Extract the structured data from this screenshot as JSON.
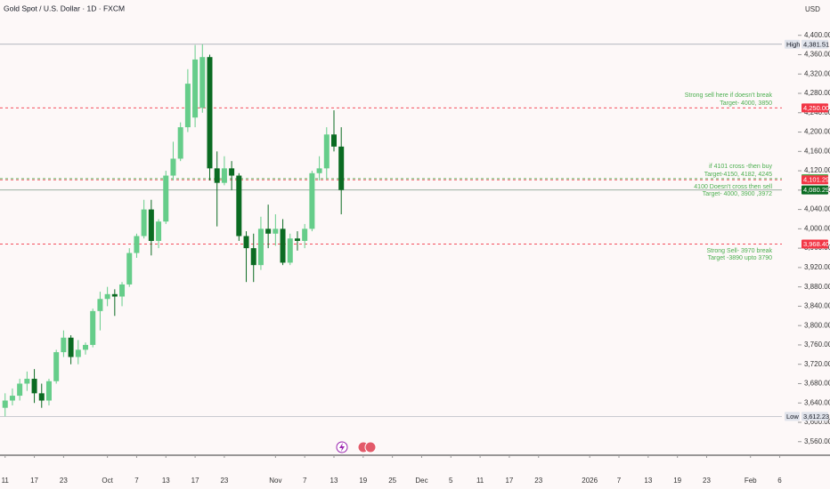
{
  "chart_data": {
    "type": "candlestick",
    "title": "Gold Spot / U.S. Dollar · 1D · FXCM",
    "currency": "USD",
    "ylim": [
      3532,
      4473
    ],
    "xlim": [
      -0.7,
      106.3
    ],
    "yticks": [
      {
        "value": 4400,
        "label": "4,400.00"
      },
      {
        "value": 4360,
        "label": "4,360.00"
      },
      {
        "value": 4320,
        "label": "4,320.00"
      },
      {
        "value": 4280,
        "label": "4,280.00"
      },
      {
        "value": 4240,
        "label": "4,240.00"
      },
      {
        "value": 4200,
        "label": "4,200.00"
      },
      {
        "value": 4160,
        "label": "4,160.00"
      },
      {
        "value": 4120,
        "label": "4,120.00"
      },
      {
        "value": 4080,
        "label": "4,080.00"
      },
      {
        "value": 4040,
        "label": "4,040.00"
      },
      {
        "value": 4000,
        "label": "4,000.00"
      },
      {
        "value": 3960,
        "label": "3,960.00"
      },
      {
        "value": 3920,
        "label": "3,920.00"
      },
      {
        "value": 3880,
        "label": "3,880.00"
      },
      {
        "value": 3840,
        "label": "3,840.00"
      },
      {
        "value": 3800,
        "label": "3,800.00"
      },
      {
        "value": 3760,
        "label": "3,760.00"
      },
      {
        "value": 3720,
        "label": "3,720.00"
      },
      {
        "value": 3680,
        "label": "3,680.00"
      },
      {
        "value": 3640,
        "label": "3,640.00"
      },
      {
        "value": 3600,
        "label": "3,600.00"
      },
      {
        "value": 3560,
        "label": "3,560.00"
      }
    ],
    "xticks": [
      {
        "value": 0,
        "label": "11"
      },
      {
        "value": 4,
        "label": "17"
      },
      {
        "value": 8,
        "label": "23"
      },
      {
        "value": 14,
        "label": "Oct"
      },
      {
        "value": 18,
        "label": "7"
      },
      {
        "value": 22,
        "label": "13"
      },
      {
        "value": 26,
        "label": "17"
      },
      {
        "value": 30,
        "label": "23"
      },
      {
        "value": 37,
        "label": "Nov"
      },
      {
        "value": 41,
        "label": "7"
      },
      {
        "value": 45,
        "label": "13"
      },
      {
        "value": 49,
        "label": "19"
      },
      {
        "value": 53,
        "label": "25"
      },
      {
        "value": 57,
        "label": "Dec"
      },
      {
        "value": 61,
        "label": "5"
      },
      {
        "value": 65,
        "label": "11"
      },
      {
        "value": 69,
        "label": "17"
      },
      {
        "value": 73,
        "label": "23"
      },
      {
        "value": 80,
        "label": "2026"
      },
      {
        "value": 84,
        "label": "7"
      },
      {
        "value": 88,
        "label": "13"
      },
      {
        "value": 92,
        "label": "19"
      },
      {
        "value": 96,
        "label": "23"
      },
      {
        "value": 102,
        "label": "Feb"
      },
      {
        "value": 106,
        "label": "6"
      }
    ],
    "up_color": "#66cd8a",
    "down_color": "#0b6b22",
    "x": [
      0,
      1,
      2,
      3,
      4,
      5,
      6,
      7,
      8,
      9,
      10,
      11,
      12,
      13,
      14,
      15,
      16,
      17,
      18,
      19,
      20,
      21,
      22,
      23,
      24,
      25,
      26,
      27,
      28,
      29,
      30,
      31,
      32,
      33,
      34,
      35,
      36,
      37,
      38,
      39,
      40,
      41,
      42,
      43,
      44,
      45,
      46
    ],
    "open": [
      3630,
      3645,
      3655,
      3680,
      3690,
      3660,
      3645,
      3685,
      3745,
      3775,
      3735,
      3750,
      3760,
      3830,
      3855,
      3865,
      3860,
      3885,
      3950,
      3985,
      4040,
      3975,
      4015,
      4110,
      4145,
      4210,
      4230,
      4250,
      4355,
      4125,
      4095,
      4125,
      4110,
      3985,
      3960,
      3925,
      4000,
      3990,
      4000,
      3930,
      3980,
      3975,
      4000,
      4115,
      4125,
      4195,
      4170
    ],
    "high": [
      3660,
      3670,
      3690,
      3705,
      3710,
      3680,
      3690,
      3750,
      3790,
      3780,
      3770,
      3765,
      3835,
      3870,
      3880,
      3875,
      3890,
      3960,
      3990,
      4060,
      4060,
      4020,
      4120,
      4180,
      4220,
      4330,
      4380,
      4381.51,
      4360,
      4160,
      4150,
      4140,
      4115,
      3995,
      3990,
      4025,
      4050,
      4030,
      4020,
      3990,
      3995,
      4010,
      4120,
      4150,
      4210,
      4245,
      4210
    ],
    "low": [
      3612.23,
      3635,
      3645,
      3665,
      3640,
      3630,
      3635,
      3680,
      3735,
      3720,
      3720,
      3740,
      3755,
      3790,
      3840,
      3820,
      3840,
      3880,
      3940,
      3980,
      3945,
      3960,
      4010,
      4100,
      4140,
      4200,
      4210,
      4240,
      4100,
      4005,
      4090,
      4080,
      3975,
      3890,
      3890,
      3915,
      3960,
      3965,
      3925,
      3925,
      3955,
      3960,
      3995,
      4100,
      4105,
      4160,
      4030
    ],
    "close": [
      3645,
      3655,
      3680,
      3690,
      3660,
      3645,
      3685,
      3745,
      3775,
      3735,
      3750,
      3760,
      3830,
      3855,
      3865,
      3860,
      3885,
      3950,
      3985,
      4040,
      3975,
      4015,
      4110,
      4145,
      4210,
      4300,
      4350,
      4355,
      4125,
      4095,
      4125,
      4110,
      3985,
      3960,
      3925,
      4000,
      3990,
      4000,
      3930,
      3980,
      3975,
      4000,
      4115,
      4125,
      4195,
      4170,
      4080.29
    ],
    "levels": [
      {
        "value": 4381.51,
        "value_label": "4,381.51",
        "tag": "High",
        "color": "#9aa0aa",
        "style": "solid",
        "box": "#e0e3eb",
        "text": "#131722"
      },
      {
        "value": 4250,
        "value_label": "4,250.00",
        "color": "#f23645",
        "style": "dashed",
        "box": "#f23645",
        "text": "#ffffff"
      },
      {
        "value": 4103.66,
        "value_label": "4,103.66",
        "color": "#4caf50",
        "style": "dashed",
        "box": "#4caf50",
        "text": "#ffffff"
      },
      {
        "value": 4101.29,
        "value_label": "4,101.29",
        "color": "#f23645",
        "style": "dashed",
        "box": "#f23645",
        "text": "#ffffff"
      },
      {
        "value": 4080.29,
        "value_label": "4,080.29",
        "color": "#8fa596",
        "style": "solid",
        "box": "#0b6b22",
        "text": "#ffffff"
      },
      {
        "value": 3968.4,
        "value_label": "3,968.40",
        "color": "#f23645",
        "style": "dashed",
        "box": "#f23645",
        "text": "#ffffff"
      },
      {
        "value": 3612.23,
        "value_label": "3,612.23",
        "tag": "Low",
        "color": "#b8bcc4",
        "style": "solid",
        "box": "#e0e3eb",
        "text": "#131722"
      }
    ],
    "annotations": [
      "Strong sell here if  doesn't break",
      "Target- 4000, 3850",
      "if 4101 cross -then buy",
      "Target-4150, 4182, 4245",
      "4100 Doesn't cross then sell",
      "Target- 4000, 3900 ,3972",
      "Strong Sell- 3970 break",
      "Target -3890 upto 3790"
    ]
  }
}
